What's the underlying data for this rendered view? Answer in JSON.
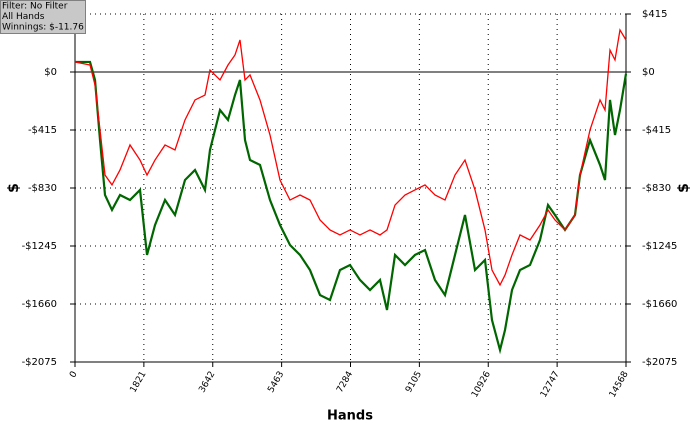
{
  "chart_data": {
    "type": "line",
    "annotations": [
      "Filter: No Filter",
      "All Hands",
      "Winnings: $-11.76"
    ],
    "x_label": "Hands",
    "y_label": "$",
    "x": [
      0,
      397,
      529,
      661,
      793,
      978,
      1190,
      1454,
      1719,
      1904,
      2115,
      2380,
      2644,
      2908,
      3173,
      3437,
      3569,
      3834,
      4045,
      4230,
      4362,
      4495,
      4627,
      4891,
      5156,
      5420,
      5684,
      5949,
      6213,
      6478,
      6742,
      7006,
      7271,
      7535,
      7800,
      8064,
      8249,
      8461,
      8725,
      8989,
      9254,
      9518,
      9783,
      10047,
      10311,
      10576,
      10840,
      11025,
      11237,
      11369,
      11554,
      11765,
      12030,
      12294,
      12506,
      12691,
      12955,
      13220,
      13352,
      13616,
      13881,
      14013,
      14145,
      14277,
      14409,
      14568
    ],
    "series": [
      {
        "color": "#006600",
        "values": [
          72,
          72,
          -57,
          -487,
          -880,
          -987,
          -880,
          -916,
          -844,
          -1309,
          -1095,
          -916,
          -1023,
          -773,
          -701,
          -844,
          -558,
          -272,
          -343,
          -165,
          -57,
          -487,
          -630,
          -665,
          -916,
          -1095,
          -1238,
          -1309,
          -1417,
          -1596,
          -1631,
          -1417,
          -1381,
          -1488,
          -1560,
          -1488,
          -1703,
          -1309,
          -1381,
          -1309,
          -1274,
          -1488,
          -1596,
          -1309,
          -1023,
          -1417,
          -1345,
          -1775,
          -1989,
          -1846,
          -1560,
          -1417,
          -1381,
          -1202,
          -952,
          -1023,
          -1130,
          -1023,
          -737,
          -487,
          -665,
          -773,
          -200,
          -451,
          -272,
          -12
        ]
      },
      {
        "color": "#ff0000",
        "values": [
          72,
          50,
          -93,
          -415,
          -737,
          -808,
          -701,
          -522,
          -630,
          -737,
          -630,
          -522,
          -558,
          -343,
          -200,
          -165,
          14,
          -57,
          50,
          122,
          229,
          -57,
          -21,
          -200,
          -451,
          -773,
          -916,
          -880,
          -916,
          -1059,
          -1130,
          -1166,
          -1130,
          -1166,
          -1130,
          -1166,
          -1130,
          -952,
          -880,
          -844,
          -808,
          -880,
          -916,
          -737,
          -630,
          -844,
          -1130,
          -1417,
          -1524,
          -1453,
          -1309,
          -1166,
          -1202,
          -1095,
          -987,
          -1059,
          -1130,
          -1023,
          -737,
          -415,
          -200,
          -272,
          157,
          86,
          301,
          229
        ]
      }
    ],
    "xlim": [
      0,
      14568
    ],
    "xticks": [
      0,
      1821,
      3642,
      5463,
      7284,
      9105,
      10926,
      12747,
      14568
    ],
    "ylim": [
      -2075,
      415
    ],
    "yticks": [
      {
        "value": 415,
        "label": "$415"
      },
      {
        "value": 0,
        "label": "$0"
      },
      {
        "value": -415,
        "label": "-$415"
      },
      {
        "value": -830,
        "label": "-$830"
      },
      {
        "value": -1245,
        "label": "-$1245"
      },
      {
        "value": -1660,
        "label": "-$1660"
      },
      {
        "value": -2075,
        "label": "-$2075"
      }
    ],
    "grid": true
  }
}
